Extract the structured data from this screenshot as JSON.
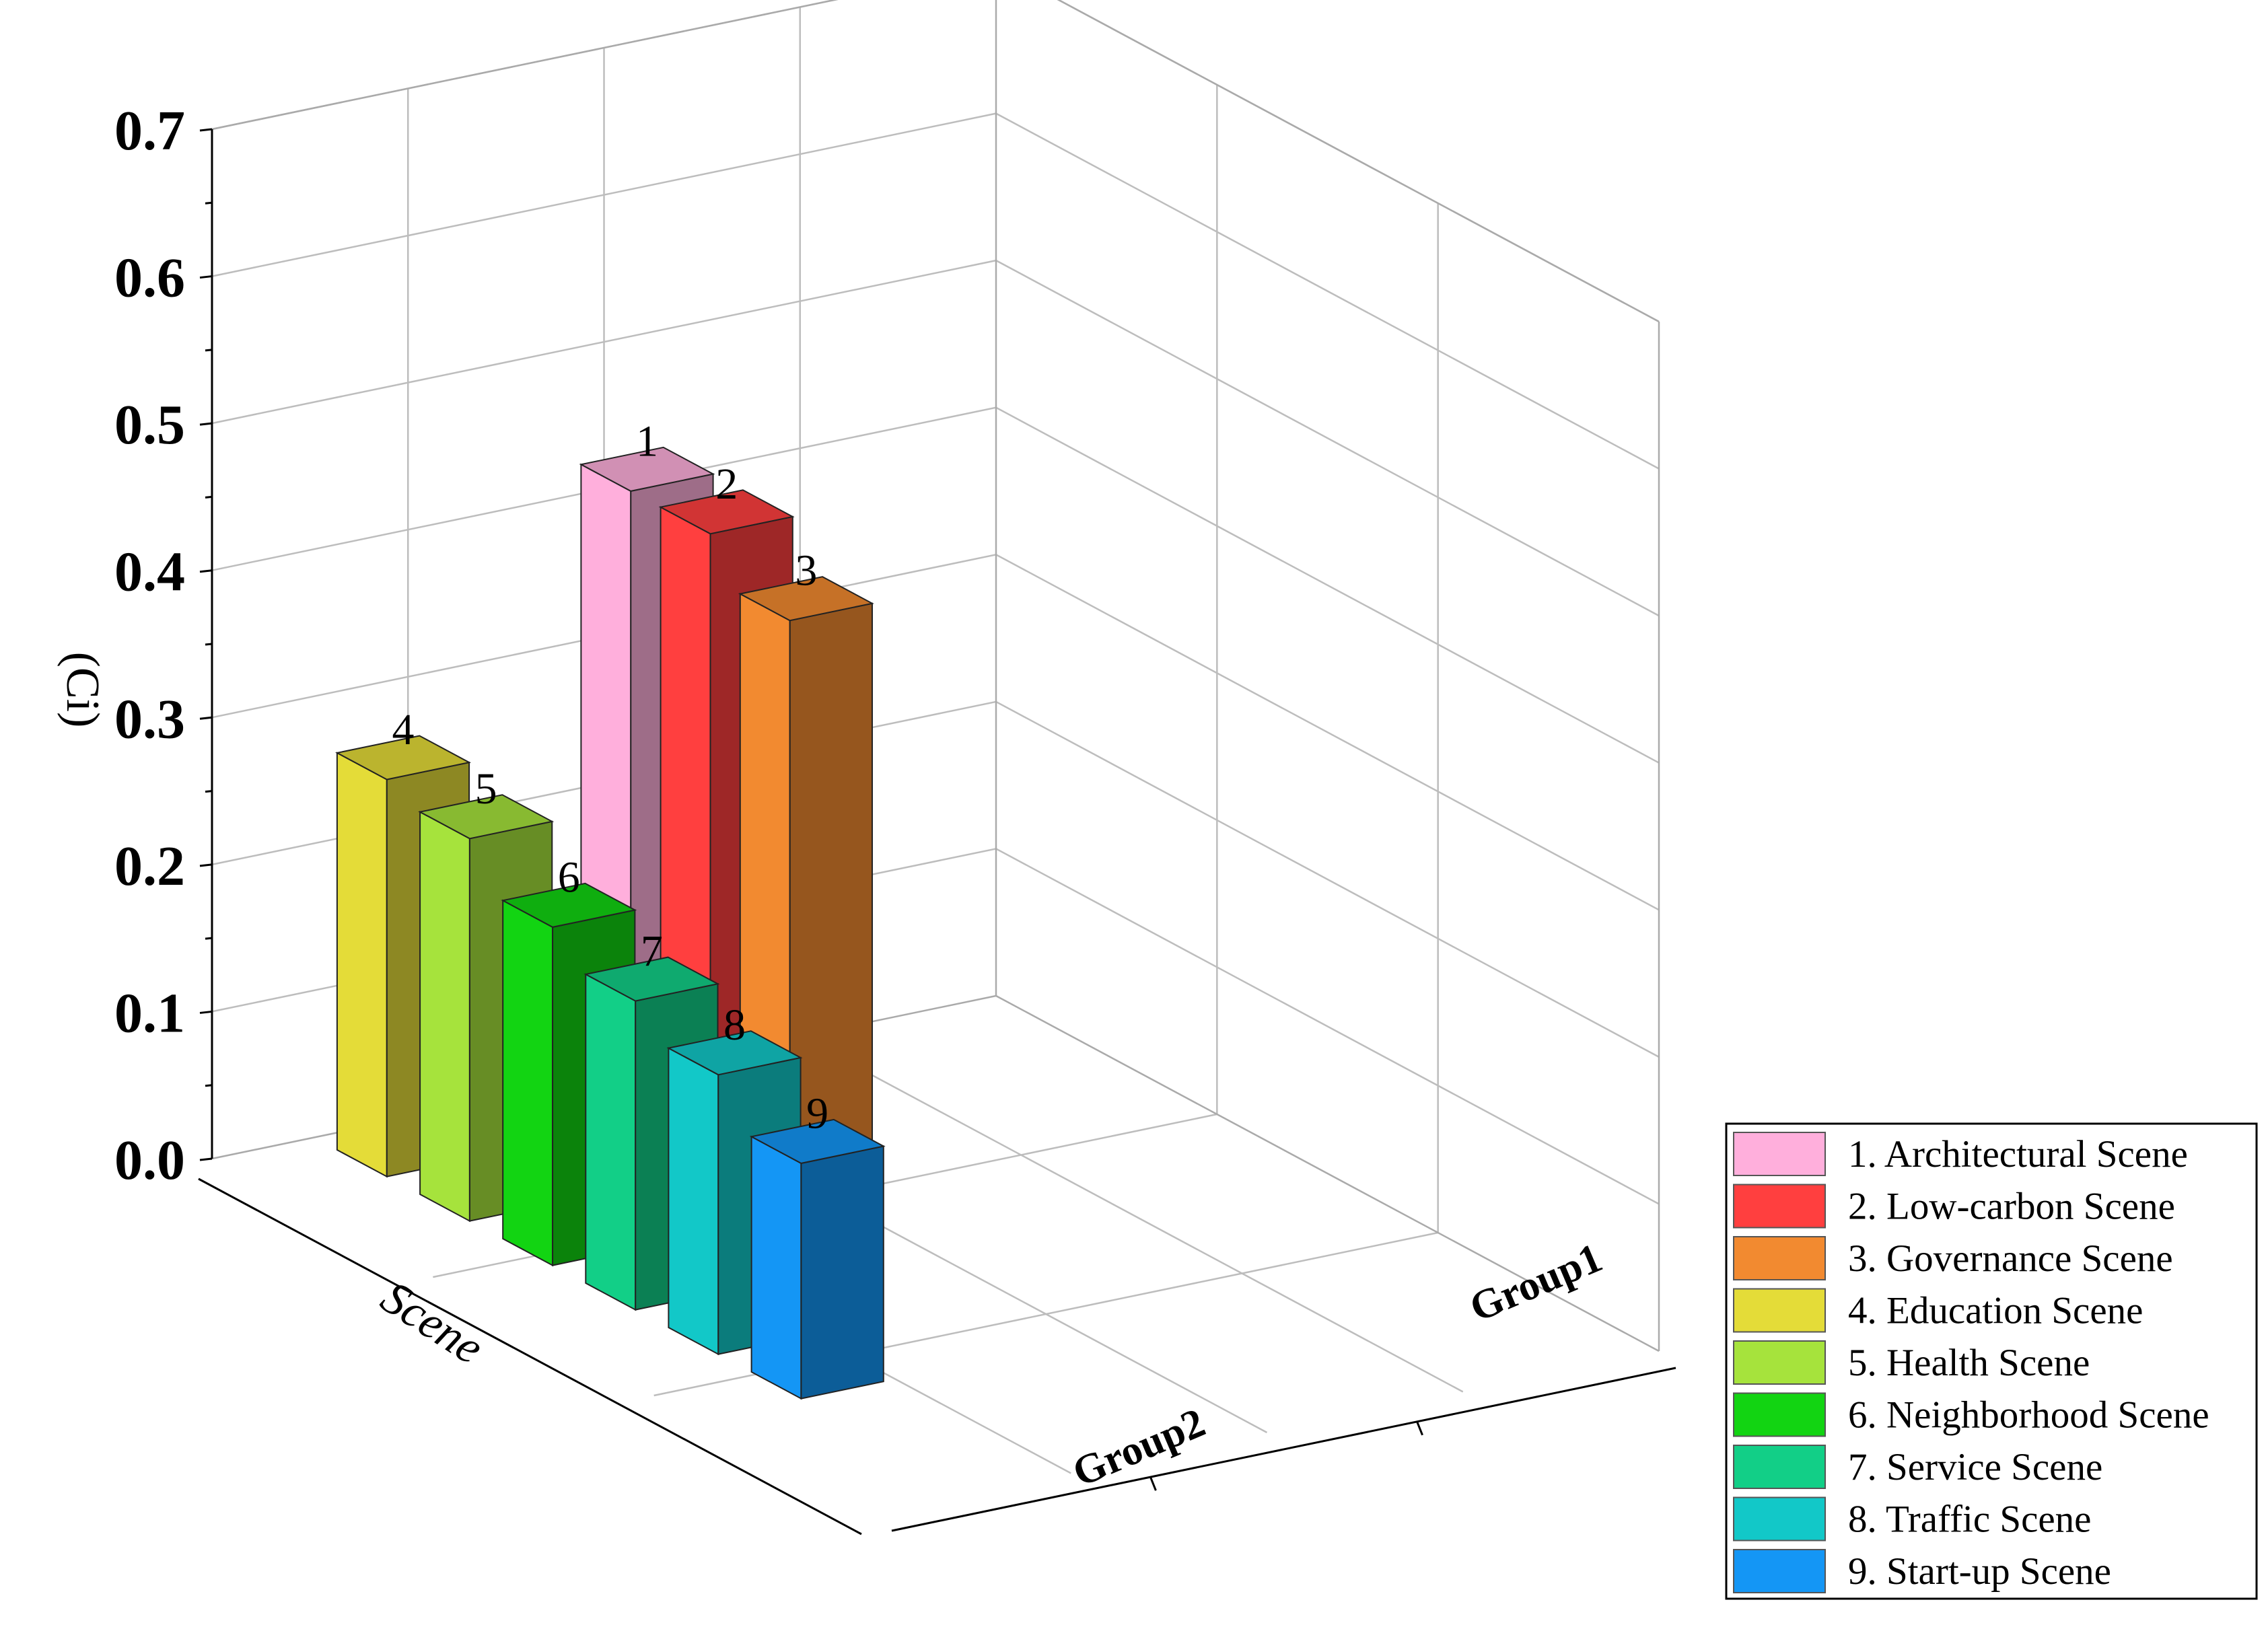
{
  "chart_data": {
    "type": "bar",
    "dimension": "3d",
    "ylabel": "(Ci)",
    "zlabel": "Scene",
    "ylim": [
      0,
      0.7
    ],
    "yticks": [
      "0.0",
      "0.1",
      "0.2",
      "0.3",
      "0.4",
      "0.5",
      "0.6",
      "0.7"
    ],
    "groups": [
      "Group1",
      "Group2"
    ],
    "grid": true,
    "legend_position": "bottom-right",
    "series": [
      {
        "label": "1",
        "name": "1. Architectural Scene",
        "group": "Group1",
        "value": 0.44,
        "color": "#ffafdc"
      },
      {
        "label": "2",
        "name": "2. Low-carbon Scene",
        "group": "Group1",
        "value": 0.44,
        "color": "#ff3f3f"
      },
      {
        "label": "3",
        "name": "3. Governance Scene",
        "group": "Group1",
        "value": 0.41,
        "color": "#f28a30"
      },
      {
        "label": "4",
        "name": "4. Education Scene",
        "group": "Group2",
        "value": 0.27,
        "color": "#e4dc38"
      },
      {
        "label": "5",
        "name": "5. Health Scene",
        "group": "Group2",
        "value": 0.26,
        "color": "#a6e33c"
      },
      {
        "label": "6",
        "name": "6. Neighborhood Scene",
        "group": "Group2",
        "value": 0.23,
        "color": "#12d412"
      },
      {
        "label": "7",
        "name": "7. Service Scene",
        "group": "Group2",
        "value": 0.21,
        "color": "#12cf87"
      },
      {
        "label": "8",
        "name": "8. Traffic Scene",
        "group": "Group2",
        "value": 0.19,
        "color": "#12c8c8"
      },
      {
        "label": "9",
        "name": "9. Start-up Scene",
        "group": "Group2",
        "value": 0.16,
        "color": "#1496f5"
      }
    ]
  }
}
